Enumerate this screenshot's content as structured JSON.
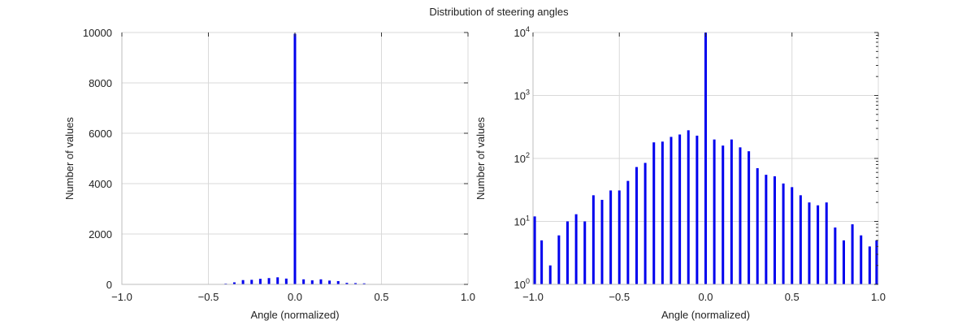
{
  "figure": {
    "title": "Distribution of steering angles"
  },
  "chart_data": [
    {
      "type": "bar",
      "title": "",
      "xlabel": "Angle (normalized)",
      "ylabel": "Number of values",
      "xlim": [
        -1.0,
        1.0
      ],
      "ylim": [
        0,
        10000
      ],
      "yscale": "linear",
      "xticks": [
        -1.0,
        -0.5,
        0.0,
        0.5,
        1.0
      ],
      "xtick_labels": [
        "−1.0",
        "−0.5",
        "0.0",
        "0.5",
        "1.0"
      ],
      "yticks": [
        0,
        2000,
        4000,
        6000,
        8000,
        10000
      ],
      "ytick_labels": [
        "0",
        "2000",
        "4000",
        "6000",
        "8000",
        "10000"
      ],
      "grid": true,
      "bar_color": "#0000ee",
      "x": [
        -0.4,
        -0.35,
        -0.3,
        -0.25,
        -0.2,
        -0.15,
        -0.1,
        -0.05,
        0.0,
        0.05,
        0.1,
        0.15,
        0.2,
        0.25,
        0.3,
        0.35,
        0.4
      ],
      "values": [
        30,
        80,
        170,
        180,
        220,
        250,
        280,
        230,
        9950,
        200,
        160,
        200,
        150,
        130,
        60,
        50,
        40
      ]
    },
    {
      "type": "bar",
      "title": "",
      "xlabel": "Angle (normalized)",
      "ylabel": "Number of values",
      "xlim": [
        -1.0,
        1.0
      ],
      "ylim": [
        1,
        10000
      ],
      "yscale": "log",
      "xticks": [
        -1.0,
        -0.5,
        0.0,
        0.5,
        1.0
      ],
      "xtick_labels": [
        "−1.0",
        "−0.5",
        "0.0",
        "0.5",
        "1.0"
      ],
      "yticks": [
        1,
        10,
        100,
        1000,
        10000
      ],
      "ytick_labels": [
        {
          "base": "10",
          "exp": "0"
        },
        {
          "base": "10",
          "exp": "1"
        },
        {
          "base": "10",
          "exp": "2"
        },
        {
          "base": "10",
          "exp": "3"
        },
        {
          "base": "10",
          "exp": "4"
        }
      ],
      "grid": true,
      "bar_color": "#0000ee",
      "x": [
        -0.99,
        -0.95,
        -0.9,
        -0.85,
        -0.8,
        -0.75,
        -0.7,
        -0.65,
        -0.6,
        -0.55,
        -0.5,
        -0.45,
        -0.4,
        -0.35,
        -0.3,
        -0.25,
        -0.2,
        -0.15,
        -0.1,
        -0.05,
        0.0,
        0.05,
        0.1,
        0.15,
        0.2,
        0.25,
        0.3,
        0.35,
        0.4,
        0.45,
        0.5,
        0.55,
        0.6,
        0.65,
        0.7,
        0.75,
        0.8,
        0.85,
        0.9,
        0.95,
        0.99
      ],
      "values": [
        12,
        5,
        2,
        6,
        10,
        13,
        10,
        26,
        22,
        31,
        31,
        44,
        73,
        85,
        180,
        185,
        220,
        240,
        280,
        230,
        9950,
        200,
        160,
        200,
        150,
        130,
        70,
        55,
        52,
        40,
        35,
        26,
        20,
        18,
        20,
        8,
        5,
        9,
        6,
        4,
        5
      ]
    }
  ]
}
